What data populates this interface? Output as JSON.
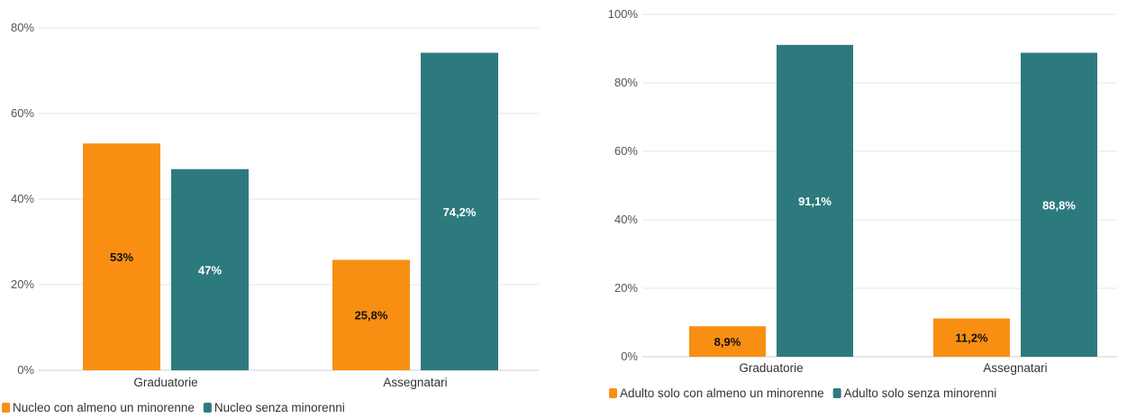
{
  "chart_data": [
    {
      "type": "bar",
      "categories": [
        "Graduatorie",
        "Assegnatari"
      ],
      "series": [
        {
          "name": "Nucleo con almeno un minorenne",
          "values": [
            53,
            25.8
          ],
          "labels": [
            "53%",
            "25,8%"
          ],
          "color": "#f98f12"
        },
        {
          "name": "Nucleo senza minorenni",
          "values": [
            47,
            74.2
          ],
          "labels": [
            "47%",
            "74,2%"
          ],
          "color": "#2d7a7e"
        }
      ],
      "ylim": [
        0,
        80
      ],
      "yticks": [
        0,
        20,
        40,
        60,
        80
      ],
      "ytick_labels": [
        "0%",
        "20%",
        "40%",
        "60%",
        "80%"
      ],
      "grid": true,
      "legend": "bottom-left"
    },
    {
      "type": "bar",
      "categories": [
        "Graduatorie",
        "Assegnatari"
      ],
      "series": [
        {
          "name": "Adulto solo con almeno un minorenne",
          "values": [
            8.9,
            11.2
          ],
          "labels": [
            "8,9%",
            "11,2%"
          ],
          "color": "#f98f12"
        },
        {
          "name": "Adulto solo senza minorenni",
          "values": [
            91.1,
            88.8
          ],
          "labels": [
            "91,1%",
            "88,8%"
          ],
          "color": "#2d7a7e"
        }
      ],
      "ylim": [
        0,
        100
      ],
      "yticks": [
        0,
        20,
        40,
        60,
        80,
        100
      ],
      "ytick_labels": [
        "0%",
        "20%",
        "40%",
        "60%",
        "80%",
        "100%"
      ],
      "grid": true,
      "legend": "bottom-left"
    }
  ]
}
